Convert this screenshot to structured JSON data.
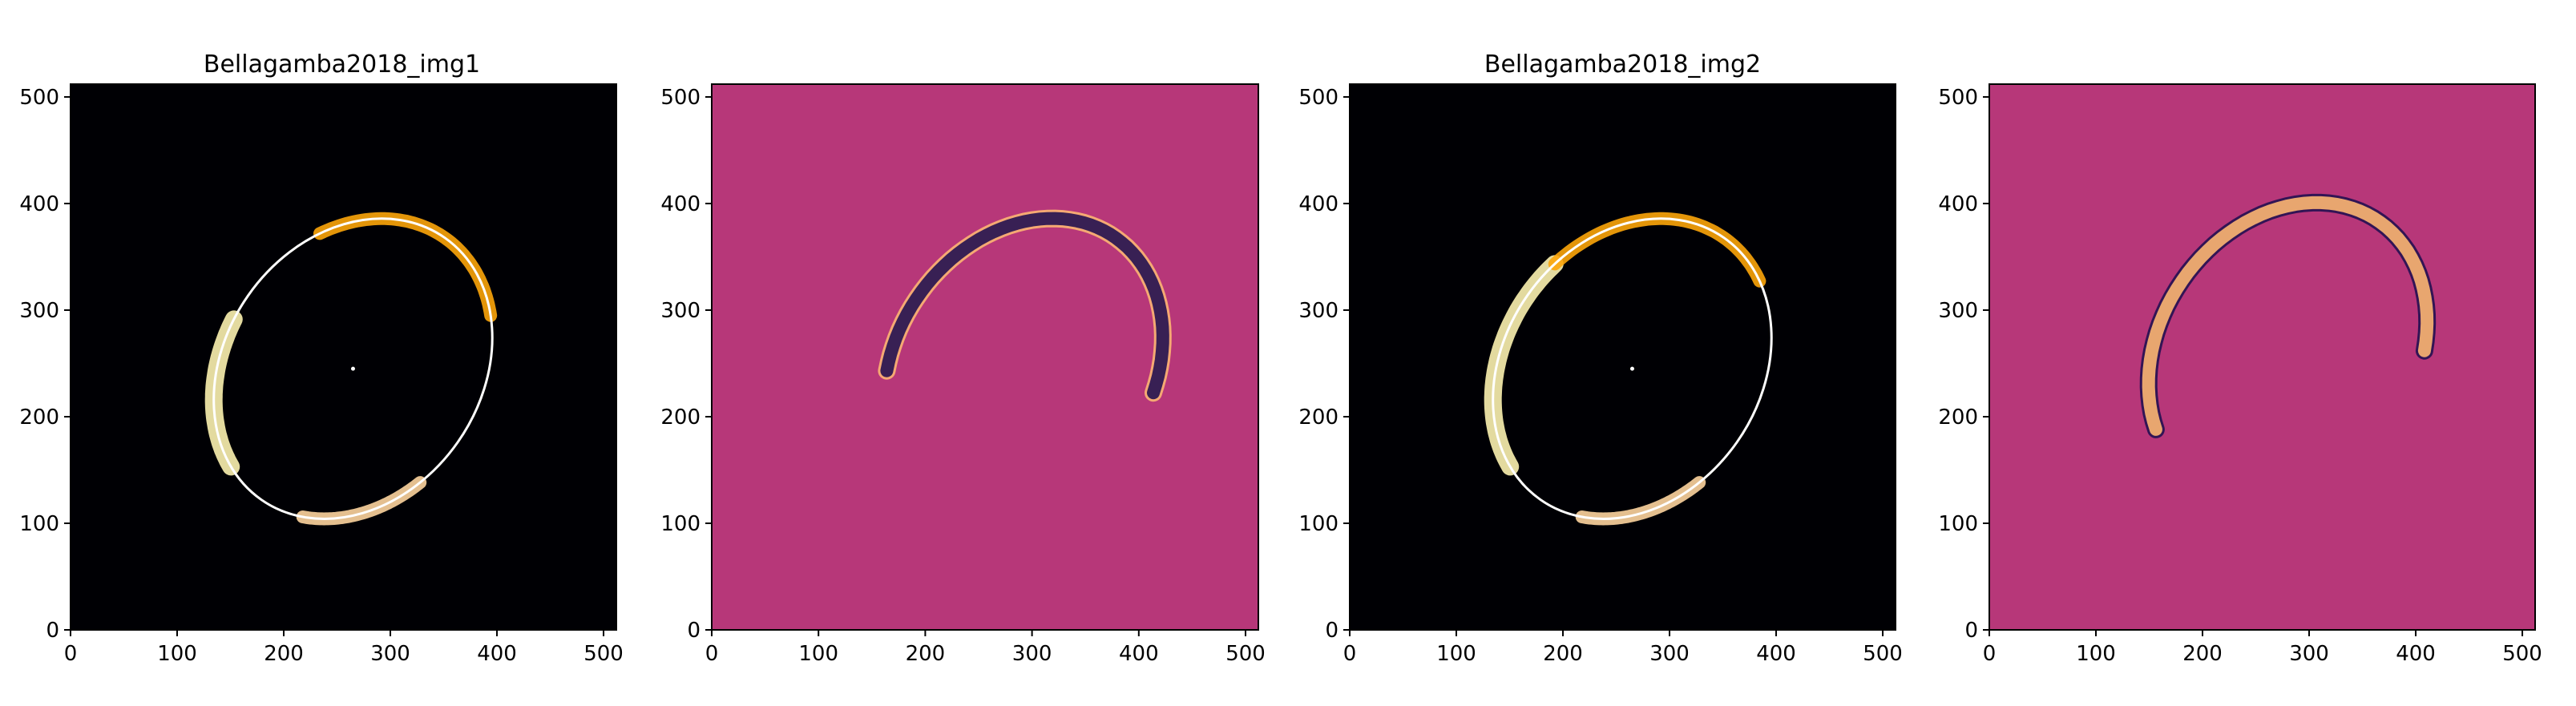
{
  "figure": {
    "panel_titles": [
      "Bellagamba2018_img1",
      "",
      "Bellagamba2018_img2",
      ""
    ]
  },
  "chart_data": [
    {
      "type": "heatmap",
      "title": "Bellagamba2018_img1",
      "xlabel": "",
      "ylabel": "",
      "xlim": [
        0,
        512
      ],
      "ylim": [
        0,
        512
      ],
      "xticks": [
        0,
        100,
        200,
        300,
        400,
        500
      ],
      "yticks": [
        0,
        100,
        200,
        300,
        400,
        500
      ],
      "colormap": "magma",
      "background_color": "#000004",
      "grid": false,
      "overlay_ellipse": {
        "center": [
          265,
          245
        ],
        "semi_major": 150,
        "semi_minor": 120,
        "angle_deg": 55,
        "color": "#ffffff"
      },
      "center_marker": [
        265,
        245
      ],
      "arcs": [
        {
          "center": [
            265,
            245
          ],
          "rx": 150,
          "ry": 120,
          "angle_deg": 55,
          "from_deg": 100,
          "to_deg": 160,
          "color": "#fcf2b0"
        },
        {
          "center": [
            265,
            245
          ],
          "rx": 150,
          "ry": 120,
          "angle_deg": 55,
          "from_deg": 200,
          "to_deg": 250,
          "color": "#fdd49e"
        },
        {
          "center": [
            265,
            245
          ],
          "rx": 150,
          "ry": 120,
          "angle_deg": 55,
          "from_deg": -40,
          "to_deg": 55,
          "color": "#fca50a"
        }
      ]
    },
    {
      "type": "heatmap",
      "title": "",
      "xlabel": "",
      "ylabel": "",
      "xlim": [
        0,
        512
      ],
      "ylim": [
        0,
        512
      ],
      "xticks": [
        0,
        100,
        200,
        300,
        400,
        500
      ],
      "yticks": [
        0,
        100,
        200,
        300,
        400,
        500
      ],
      "colormap": "magma",
      "background_color": "#b73779",
      "grid": false,
      "arcs": [
        {
          "center": [
            292,
            245
          ],
          "rx": 150,
          "ry": 120,
          "angle_deg": 55,
          "from_deg": -70,
          "to_deg": 120,
          "color": "#fcb672"
        },
        {
          "center": [
            292,
            245
          ],
          "rx": 150,
          "ry": 120,
          "angle_deg": 55,
          "from_deg": -70,
          "to_deg": 120,
          "color": "#231151"
        }
      ]
    },
    {
      "type": "heatmap",
      "title": "Bellagamba2018_img2",
      "xlabel": "",
      "ylabel": "",
      "xlim": [
        0,
        512
      ],
      "ylim": [
        0,
        512
      ],
      "xticks": [
        0,
        100,
        200,
        300,
        400,
        500
      ],
      "yticks": [
        0,
        100,
        200,
        300,
        400,
        500
      ],
      "colormap": "magma",
      "background_color": "#000004",
      "grid": false,
      "overlay_ellipse": {
        "center": [
          265,
          245
        ],
        "semi_major": 150,
        "semi_minor": 120,
        "angle_deg": 55,
        "color": "#ffffff"
      },
      "center_marker": [
        265,
        245
      ],
      "arcs": [
        {
          "center": [
            265,
            245
          ],
          "rx": 150,
          "ry": 120,
          "angle_deg": 55,
          "from_deg": 75,
          "to_deg": 160,
          "color": "#fcf2b0"
        },
        {
          "center": [
            265,
            245
          ],
          "rx": 150,
          "ry": 120,
          "angle_deg": 55,
          "from_deg": 200,
          "to_deg": 250,
          "color": "#fdd49e"
        },
        {
          "center": [
            265,
            245
          ],
          "rx": 150,
          "ry": 120,
          "angle_deg": 55,
          "from_deg": -25,
          "to_deg": 75,
          "color": "#fca50a"
        }
      ]
    },
    {
      "type": "heatmap",
      "title": "",
      "xlabel": "",
      "ylabel": "",
      "xlim": [
        0,
        512
      ],
      "ylim": [
        0,
        512
      ],
      "xticks": [
        0,
        100,
        200,
        300,
        400,
        500
      ],
      "yticks": [
        0,
        100,
        200,
        300,
        400,
        500
      ],
      "colormap": "magma",
      "background_color": "#b73779",
      "grid": false,
      "arcs": [
        {
          "center": [
            280,
            260
          ],
          "rx": 150,
          "ry": 120,
          "angle_deg": 55,
          "from_deg": -60,
          "to_deg": 150,
          "color": "#231151"
        },
        {
          "center": [
            280,
            260
          ],
          "rx": 150,
          "ry": 120,
          "angle_deg": 55,
          "from_deg": -60,
          "to_deg": 150,
          "color": "#fcb672"
        }
      ]
    }
  ]
}
